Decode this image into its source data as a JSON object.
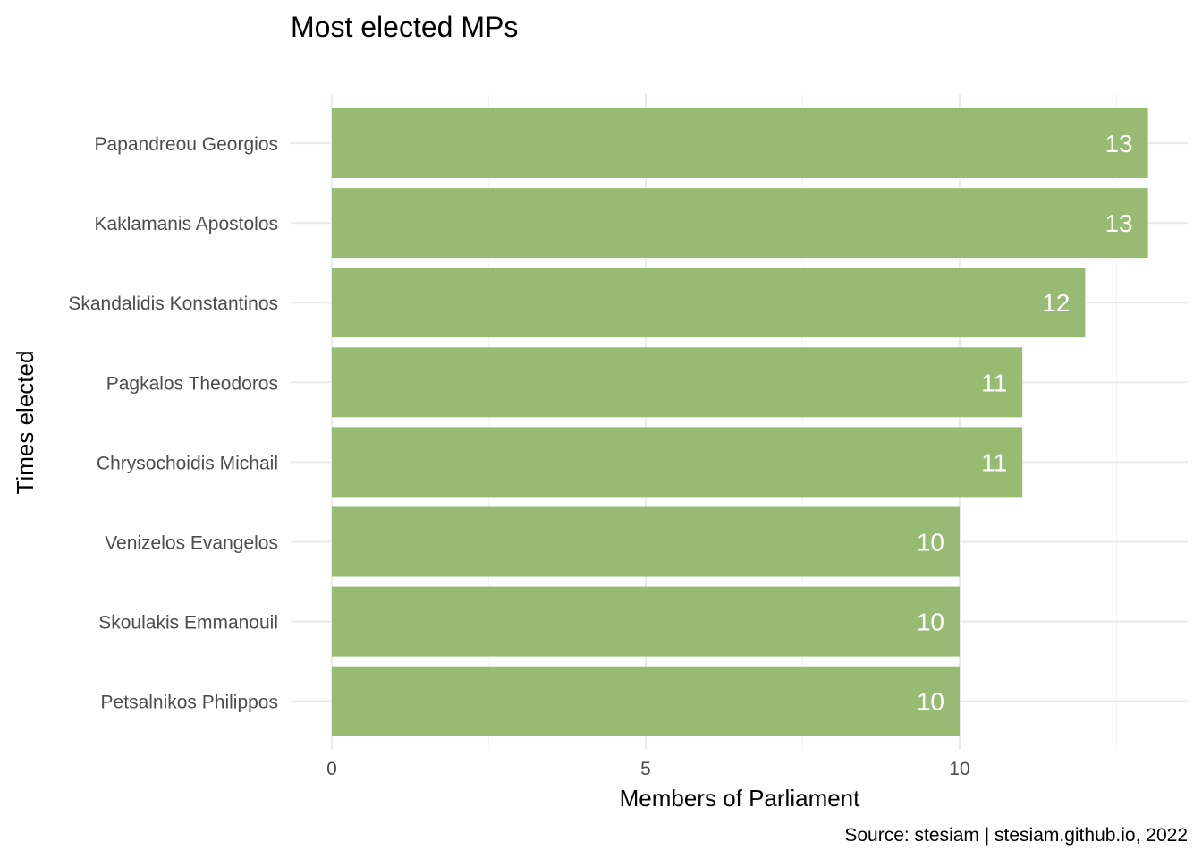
{
  "chart_data": {
    "type": "bar",
    "orientation": "horizontal",
    "title": "Most elected MPs",
    "xlabel": "Members of Parliament",
    "ylabel": "Times elected",
    "caption": "Source: stesiam | stesiam.github.io, 2022",
    "categories": [
      "Papandreou Georgios",
      "Kaklamanis Apostolos",
      "Skandalidis Konstantinos",
      "Pagkalos Theodoros",
      "Chrysochoidis Michail",
      "Venizelos Evangelos",
      "Skoulakis Emmanouil",
      "Petsalnikos Philippos"
    ],
    "values": [
      13,
      13,
      12,
      11,
      11,
      10,
      10,
      10
    ],
    "xlim": [
      0,
      13
    ],
    "xticks": [
      0,
      5,
      10
    ],
    "grid": true,
    "legend": "none",
    "bar_color": "#97bb72",
    "label_color": "#ffffff"
  }
}
